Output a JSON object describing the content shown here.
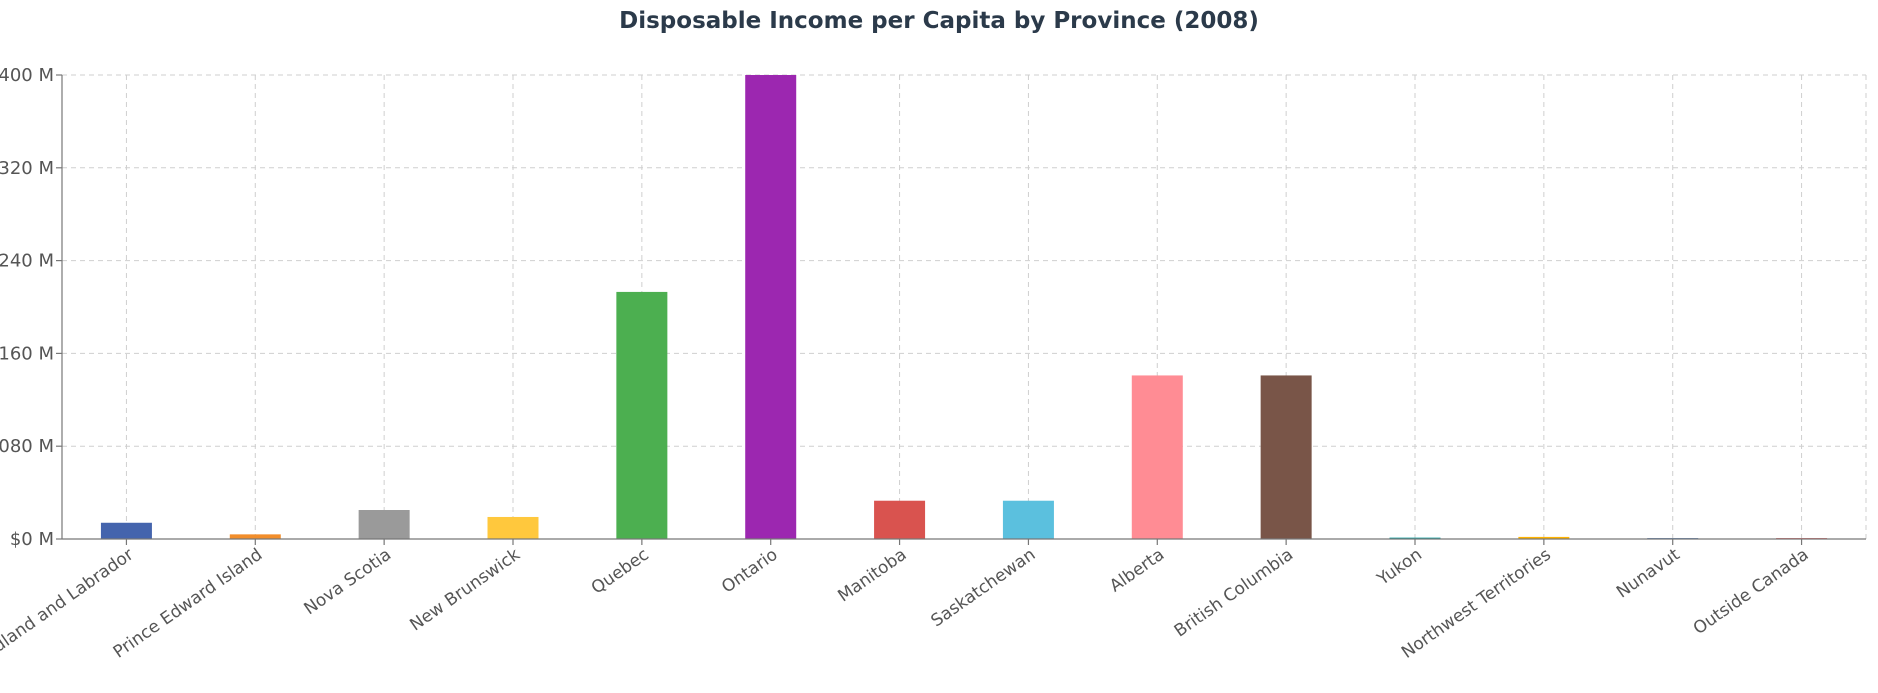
{
  "chart_data": {
    "type": "bar",
    "title": "Disposable Income per Capita by Province (2008)",
    "xlabel": "",
    "ylabel": "",
    "ylim": [
      0,
      400
    ],
    "yticks": [
      {
        "value": 0,
        "label": "$0 M"
      },
      {
        "value": 80,
        "label": "080 M"
      },
      {
        "value": 160,
        "label": "160 M"
      },
      {
        "value": 240,
        "label": "240 M"
      },
      {
        "value": 320,
        "label": "320 M"
      },
      {
        "value": 400,
        "label": "400 M"
      }
    ],
    "grid": true,
    "categories": [
      "Newfoundland and Labrador",
      "Prince Edward Island",
      "Nova Scotia",
      "New Brunswick",
      "Quebec",
      "Ontario",
      "Manitoba",
      "Saskatchewan",
      "Alberta",
      "British Columbia",
      "Yukon",
      "Northwest Territories",
      "Nunavut",
      "Outside Canada"
    ],
    "values": [
      14,
      4,
      25,
      19,
      213,
      400,
      33,
      33,
      141,
      141,
      1.2,
      1.8,
      0.8,
      0.5
    ],
    "colors": [
      "#4464ad",
      "#f28e2b",
      "#9a9a9a",
      "#ffc83d",
      "#4caf50",
      "#9c27b0",
      "#d9534f",
      "#5bc0de",
      "#ff8c94",
      "#795548",
      "#17a2a2",
      "#ffb300",
      "#6c8ebf",
      "#e57373"
    ]
  }
}
